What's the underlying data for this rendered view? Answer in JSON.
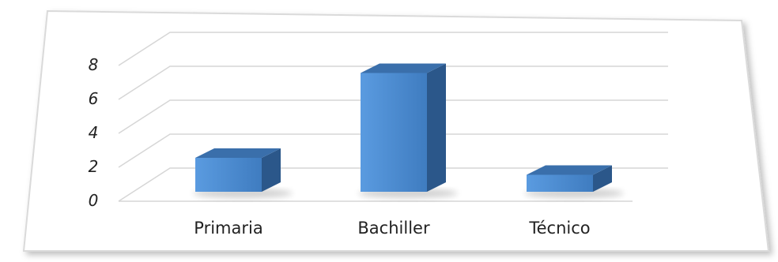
{
  "chart_data": {
    "type": "bar",
    "categories": [
      "Primaria",
      "Bachiller",
      "Técnico"
    ],
    "values": [
      2,
      7,
      1
    ],
    "yticks": [
      0,
      2,
      4,
      6,
      8
    ],
    "ylim": [
      0,
      8
    ],
    "title": "",
    "xlabel": "",
    "ylabel": "",
    "grid": true,
    "style": "3d-column",
    "colors": {
      "bar_front": "#4f8ed0",
      "bar_top": "#3a6fab",
      "bar_side": "#2b578a",
      "grid": "#d6d6d6",
      "frame_border": "#dadada"
    }
  }
}
